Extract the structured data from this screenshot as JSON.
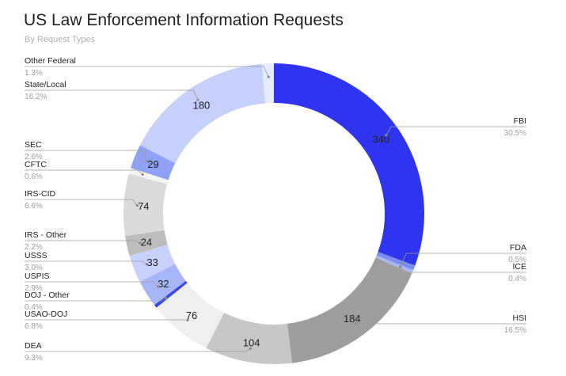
{
  "chart_data": {
    "type": "pie",
    "donut": true,
    "title": "US Law Enforcement Information Requests",
    "subtitle": "By Request Types",
    "legend": "labels beside slices",
    "slices": [
      {
        "name": "FBI",
        "value": 340,
        "percent": "30.5%",
        "color": "#2f34f0",
        "label": "340"
      },
      {
        "name": "FDA",
        "value": 6,
        "percent": "0.5%",
        "color": "#7b8ef5",
        "label": ""
      },
      {
        "name": "ICE",
        "value": 4,
        "percent": "0.4%",
        "color": "#a8b8f8",
        "label": ""
      },
      {
        "name": "HSI",
        "value": 184,
        "percent": "16.5%",
        "color": "#9e9e9e",
        "label": "184"
      },
      {
        "name": "DEA",
        "value": 104,
        "percent": "9.3%",
        "color": "#c7c7c7",
        "label": "104"
      },
      {
        "name": "USAO-DOJ",
        "value": 76,
        "percent": "6.8%",
        "color": "#efefef",
        "label": "76"
      },
      {
        "name": "DOJ - Other",
        "value": 4,
        "percent": "0.4%",
        "color": "#3b47e6",
        "label": ""
      },
      {
        "name": "USPIS",
        "value": 32,
        "percent": "2.9%",
        "color": "#a8b6f7",
        "label": "32"
      },
      {
        "name": "USSS",
        "value": 33,
        "percent": "3.0%",
        "color": "#c8d1fb",
        "label": "33"
      },
      {
        "name": "IRS - Other",
        "value": 24,
        "percent": "2.2%",
        "color": "#bdbdbd",
        "label": "24"
      },
      {
        "name": "IRS-CID",
        "value": 74,
        "percent": "6.6%",
        "color": "#dadada",
        "label": "74"
      },
      {
        "name": "CFTC",
        "value": 7,
        "percent": "0.6%",
        "color": "#f4f4f4",
        "label": ""
      },
      {
        "name": "SEC",
        "value": 29,
        "percent": "2.6%",
        "color": "#8fa2f6",
        "label": "29"
      },
      {
        "name": "State/Local",
        "value": 180,
        "percent": "16.2%",
        "color": "#c6d0fb",
        "label": "180"
      },
      {
        "name": "Other Federal",
        "value": 14,
        "percent": "1.3%",
        "color": "#e6ebfd",
        "label": ""
      }
    ]
  }
}
